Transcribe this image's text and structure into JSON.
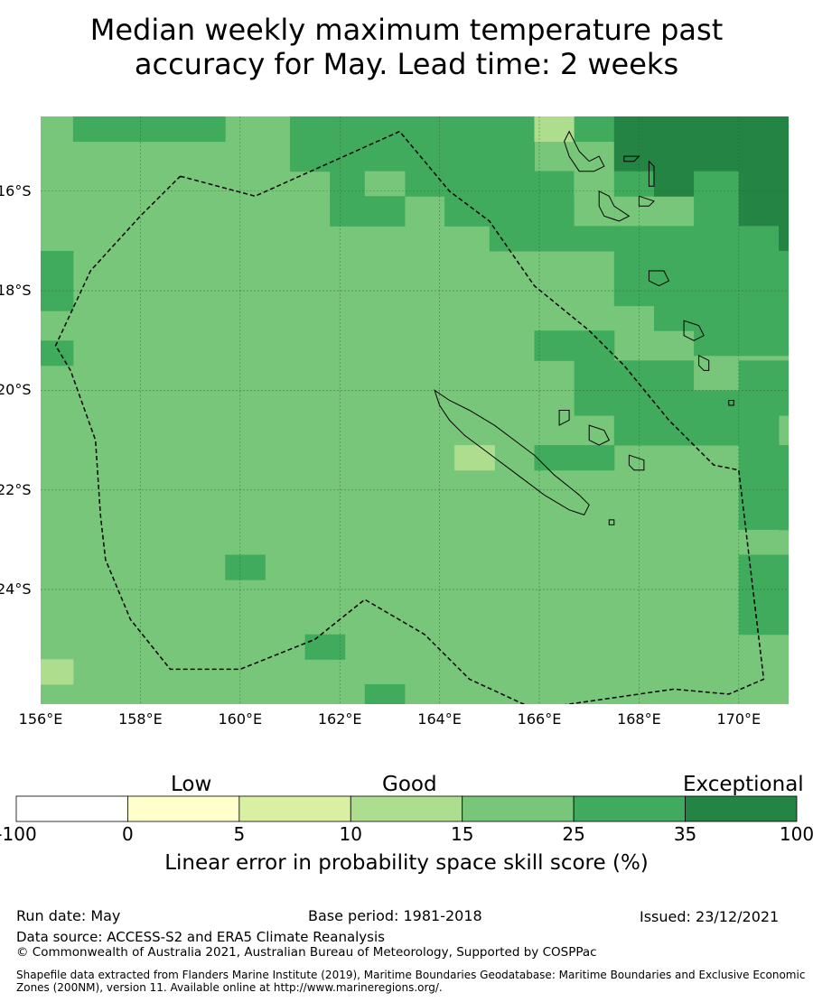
{
  "title": {
    "line1": "Median weekly maximum temperature past",
    "line2": "accuracy for May. Lead time: 2 weeks"
  },
  "map": {
    "lon_range": [
      156,
      171
    ],
    "lat_range": [
      -26.3,
      -14.5
    ],
    "lat_labels": [
      "16°S",
      "18°S",
      "20°S",
      "22°S",
      "24°S"
    ],
    "lon_labels": [
      "156°E",
      "158°E",
      "160°E",
      "162°E",
      "164°E",
      "166°E",
      "168°E",
      "170°E"
    ],
    "colors": {
      "lt15": "#aedd8e",
      "c15_25": "#78c679",
      "c25_35": "#41ab5d",
      "gt35": "#238443",
      "gridline": "#2f5d33",
      "outline": "#000000"
    },
    "cells_note": "grid cells are in degree coordinates; class codes: 3 = 10-15, 4 = 15-25, 5 = 25-35, 6 = 35-100"
  },
  "colorbar": {
    "categories": [
      "Low",
      "Good",
      "Exceptional"
    ],
    "ticks": [
      "-100",
      "0",
      "5",
      "10",
      "15",
      "25",
      "35",
      "100"
    ],
    "colors": [
      "#ffffff",
      "#ffffcc",
      "#d9f0a3",
      "#addd8e",
      "#78c679",
      "#41ab5d",
      "#238443"
    ],
    "label": "Linear error in probability space skill score (%)"
  },
  "footer": {
    "run_date": "Run date: May",
    "base_period": "Base period: 1981-2018",
    "issued": "Issued: 23/12/2021",
    "data_source": "Data source: ACCESS-S2 and ERA5 Climate Reanalysis",
    "copyright": "© Commonwealth of Australia 2021, Australian Bureau of Meteorology, Supported by COSPPac",
    "shapefile": "Shapefile data extracted from Flanders Marine Institute (2019), Maritime Boundaries Geodatabase: Maritime Boundaries and Exclusive Economic Zones (200NM), version 11. Available online at http://www.marineregions.org/."
  }
}
